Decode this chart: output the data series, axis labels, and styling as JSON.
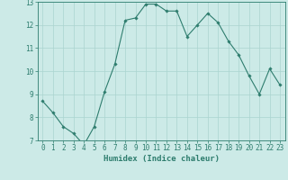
{
  "x": [
    0,
    1,
    2,
    3,
    4,
    5,
    6,
    7,
    8,
    9,
    10,
    11,
    12,
    13,
    14,
    15,
    16,
    17,
    18,
    19,
    20,
    21,
    22,
    23
  ],
  "y": [
    8.7,
    8.2,
    7.6,
    7.3,
    6.8,
    7.6,
    9.1,
    10.3,
    12.2,
    12.3,
    12.9,
    12.9,
    12.6,
    12.6,
    11.5,
    12.0,
    12.5,
    12.1,
    11.3,
    10.7,
    9.8,
    9.0,
    10.1,
    9.4
  ],
  "line_color": "#2e7d6e",
  "marker": "D",
  "marker_size": 1.8,
  "bg_color": "#cceae7",
  "grid_color": "#aad4cf",
  "xlabel": "Humidex (Indice chaleur)",
  "ylim": [
    7,
    13
  ],
  "xlim": [
    -0.5,
    23.5
  ],
  "yticks": [
    7,
    8,
    9,
    10,
    11,
    12,
    13
  ],
  "xticks": [
    0,
    1,
    2,
    3,
    4,
    5,
    6,
    7,
    8,
    9,
    10,
    11,
    12,
    13,
    14,
    15,
    16,
    17,
    18,
    19,
    20,
    21,
    22,
    23
  ],
  "axis_color": "#2e7d6e",
  "tick_color": "#2e7d6e",
  "label_fontsize": 6.5,
  "tick_fontsize": 5.5
}
